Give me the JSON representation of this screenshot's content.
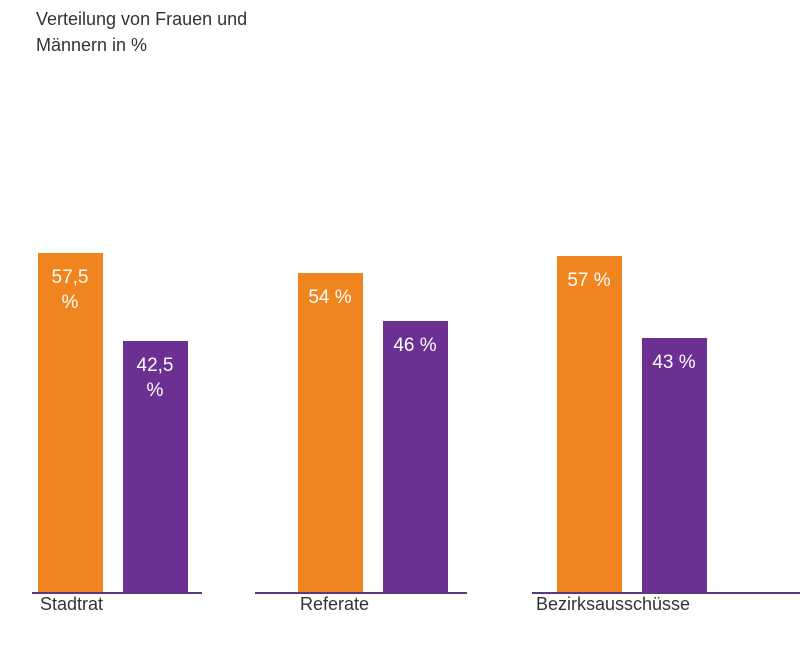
{
  "chart_data": {
    "type": "bar",
    "title": "Verteilung von Frauen und Männern in %",
    "categories": [
      "Stadtrat",
      "Referate",
      "Bezirksausschüsse"
    ],
    "series": [
      {
        "color": "#f0841e",
        "values": [
          57.5,
          54,
          57
        ],
        "value_labels": [
          "57,5 %",
          "54 %",
          "57 %"
        ]
      },
      {
        "color": "#6b3092",
        "values": [
          42.5,
          46,
          43
        ],
        "value_labels": [
          "42,5 %",
          "46 %",
          "43 %"
        ]
      }
    ]
  }
}
